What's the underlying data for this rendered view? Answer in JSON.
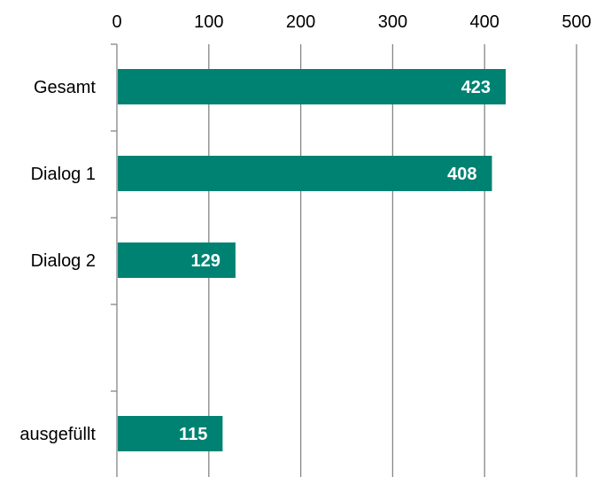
{
  "chart_data": {
    "type": "bar",
    "orientation": "horizontal",
    "categories": [
      "Gesamt",
      "Dialog 1",
      "Dialog 2",
      "",
      "ausgefüllt"
    ],
    "values": [
      423,
      408,
      129,
      null,
      115
    ],
    "data_labels": [
      "423",
      "408",
      "129",
      "",
      "115"
    ],
    "title": "",
    "xlabel": "",
    "ylabel": "",
    "xlim": [
      0,
      500
    ],
    "x_ticks": [
      0,
      100,
      200,
      300,
      400,
      500
    ],
    "x_tick_labels": [
      "0",
      "100",
      "200",
      "300",
      "400",
      "500"
    ],
    "x_axis_position": "top",
    "grid": true,
    "legend": "none",
    "colors": {
      "bar": "#008272",
      "grid": "#868686",
      "label": "#ffffff"
    }
  }
}
